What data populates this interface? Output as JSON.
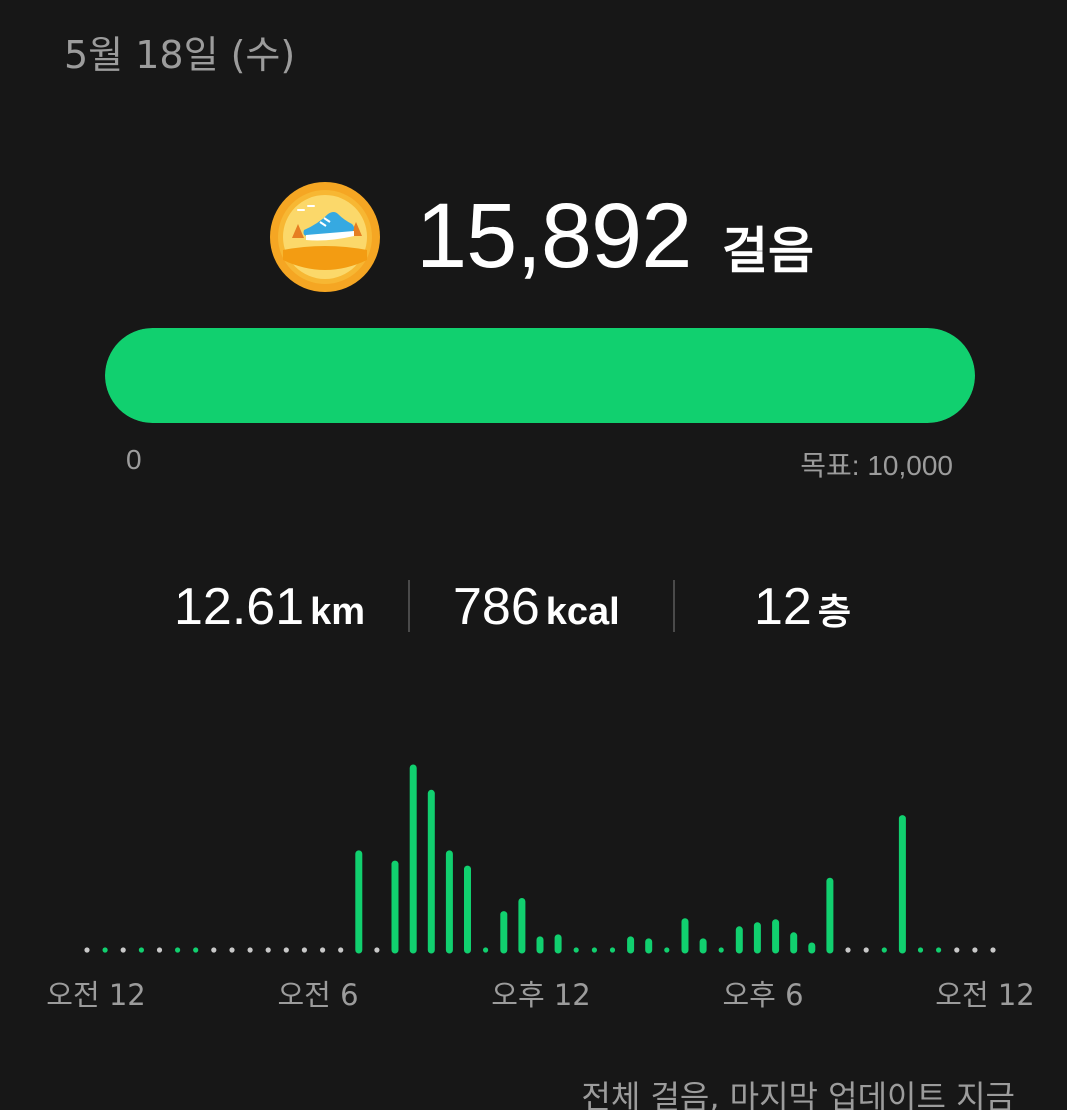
{
  "date": "5월 18일 (수)",
  "steps": {
    "value": "15,892",
    "unit": "걸음",
    "progress_fraction": 1.0
  },
  "progress": {
    "min_label": "0",
    "goal_label": "목표: 10,000"
  },
  "stats": {
    "distance": {
      "value": "12.61",
      "unit": "km"
    },
    "calories": {
      "value": "786",
      "unit": "kcal"
    },
    "floors": {
      "value": "12",
      "unit": "층"
    }
  },
  "chart_data": {
    "type": "bar",
    "x_tick_labels": [
      "오전 12",
      "오전 6",
      "오후 12",
      "오후 6",
      "오전 12"
    ],
    "values": [
      0,
      1,
      0,
      1,
      0,
      1,
      1,
      0,
      0,
      0,
      0,
      0,
      0,
      0,
      0,
      95,
      0,
      85,
      180,
      155,
      95,
      80,
      1,
      35,
      48,
      10,
      12,
      2,
      2,
      1,
      10,
      8,
      1,
      28,
      8,
      3,
      20,
      24,
      27,
      14,
      4,
      68,
      0,
      0,
      1,
      130,
      1,
      1,
      0,
      0,
      0
    ],
    "colors": {
      "active": "#11d06f",
      "inactive": "#c8c8c8"
    }
  },
  "footer": "전체 걸음, 마지막 업데이트 지금"
}
